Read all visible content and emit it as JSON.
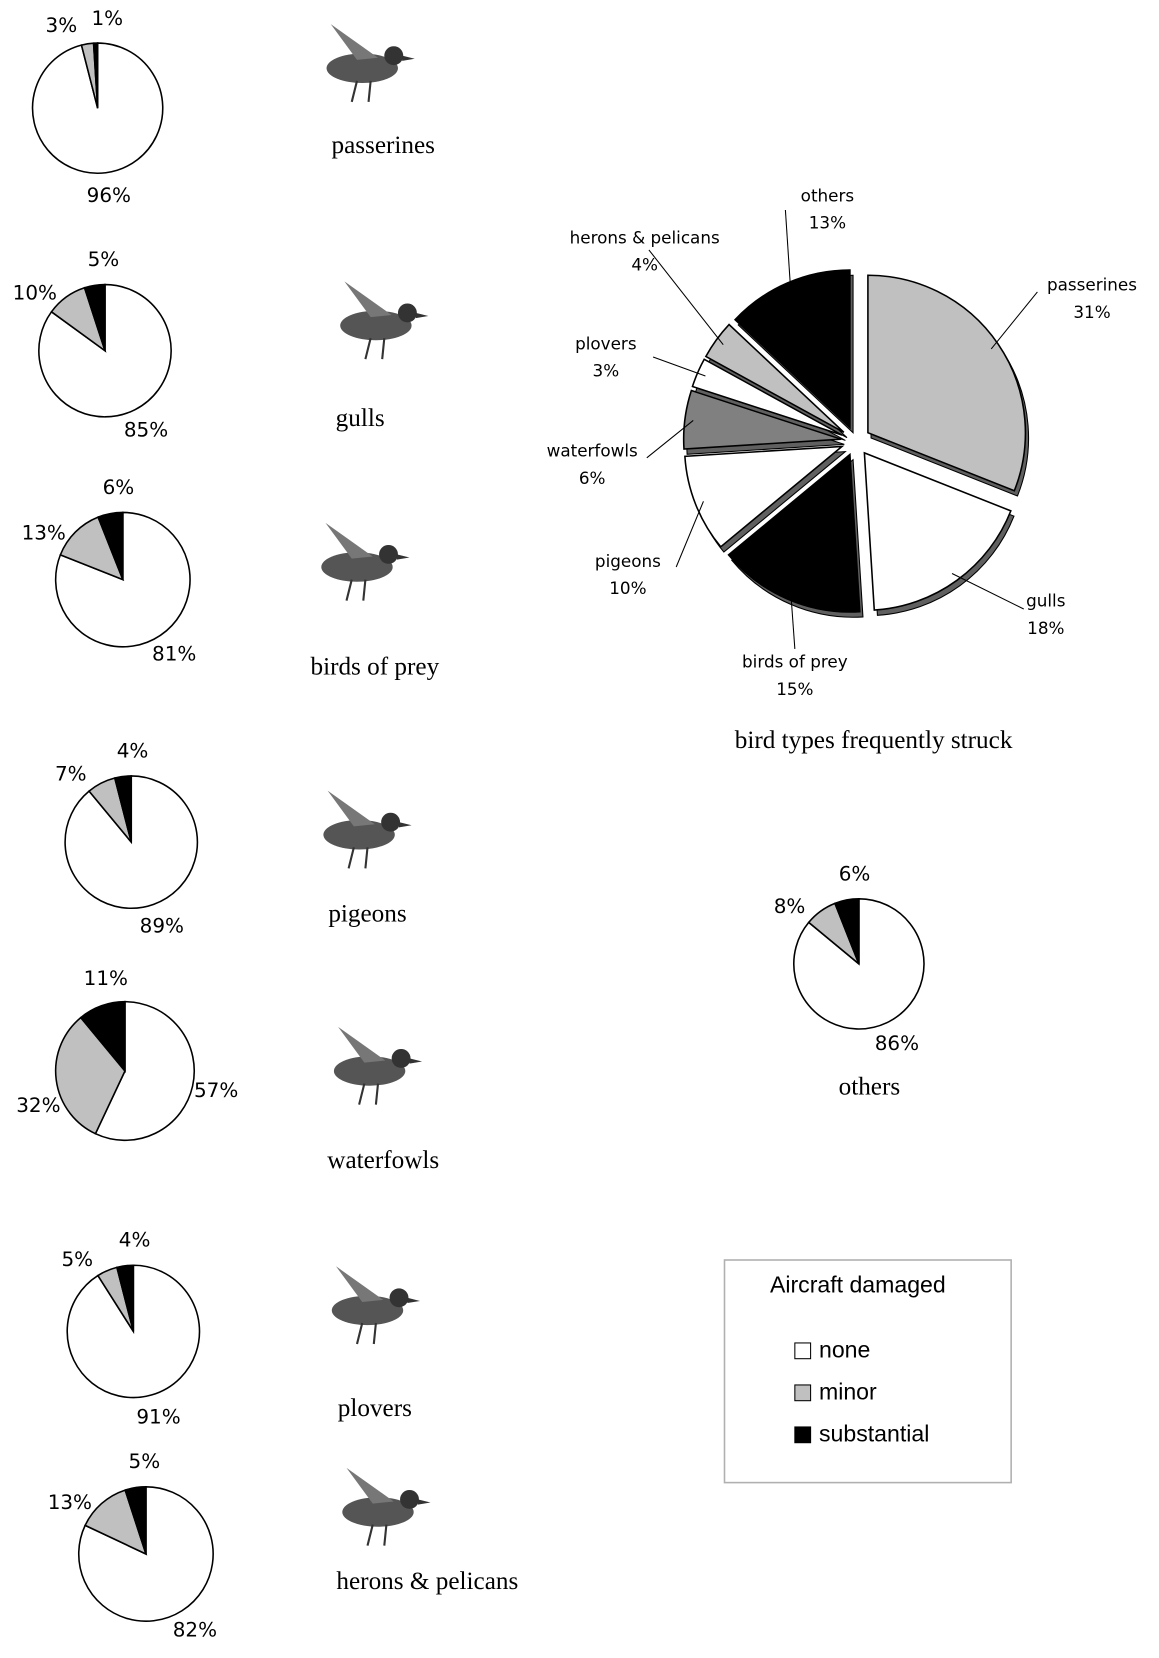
{
  "chart_data": [
    {
      "type": "pie",
      "title": "bird types frequently struck",
      "exploded": true,
      "categories": [
        "passerines",
        "gulls",
        "birds of prey",
        "pigeons",
        "waterfowls",
        "plovers",
        "herons & pelicans",
        "others"
      ],
      "values": [
        31,
        18,
        15,
        10,
        6,
        3,
        4,
        13
      ],
      "value_labels": [
        "31%",
        "18%",
        "15%",
        "10%",
        "6%",
        "3%",
        "4%",
        "13%"
      ],
      "colors": [
        "#c0c0c0",
        "#ffffff",
        "#000000",
        "#ffffff",
        "#808080",
        "#ffffff",
        "#c0c0c0",
        "#000000"
      ]
    },
    {
      "type": "pie",
      "title": "passerines",
      "values": [
        96,
        3,
        1
      ],
      "value_labels": [
        "96%",
        "3%",
        "1%"
      ]
    },
    {
      "type": "pie",
      "title": "gulls",
      "values": [
        85,
        10,
        5
      ],
      "value_labels": [
        "85%",
        "10%",
        "5%"
      ]
    },
    {
      "type": "pie",
      "title": "birds of prey",
      "values": [
        81,
        13,
        6
      ],
      "value_labels": [
        "81%",
        "13%",
        "6%"
      ]
    },
    {
      "type": "pie",
      "title": "pigeons",
      "values": [
        89,
        7,
        4
      ],
      "value_labels": [
        "89%",
        "7%",
        "4%"
      ]
    },
    {
      "type": "pie",
      "title": "waterfowls",
      "values": [
        57,
        32,
        11
      ],
      "value_labels": [
        "57%",
        "32%",
        "11%"
      ]
    },
    {
      "type": "pie",
      "title": "plovers",
      "values": [
        91,
        5,
        4
      ],
      "value_labels": [
        "91%",
        "5%",
        "4%"
      ]
    },
    {
      "type": "pie",
      "title": "herons & pelicans",
      "values": [
        82,
        13,
        5
      ],
      "value_labels": [
        "82%",
        "13%",
        "5%"
      ]
    },
    {
      "type": "pie",
      "title": "others",
      "values": [
        86,
        8,
        6
      ],
      "value_labels": [
        "86%",
        "8%",
        "6%"
      ]
    }
  ],
  "legend": {
    "title": "Aircraft damaged",
    "series": [
      {
        "name": "none",
        "color": "#ffffff"
      },
      {
        "name": "minor",
        "color": "#c0c0c0"
      },
      {
        "name": "substantial",
        "color": "#000000"
      }
    ]
  }
}
